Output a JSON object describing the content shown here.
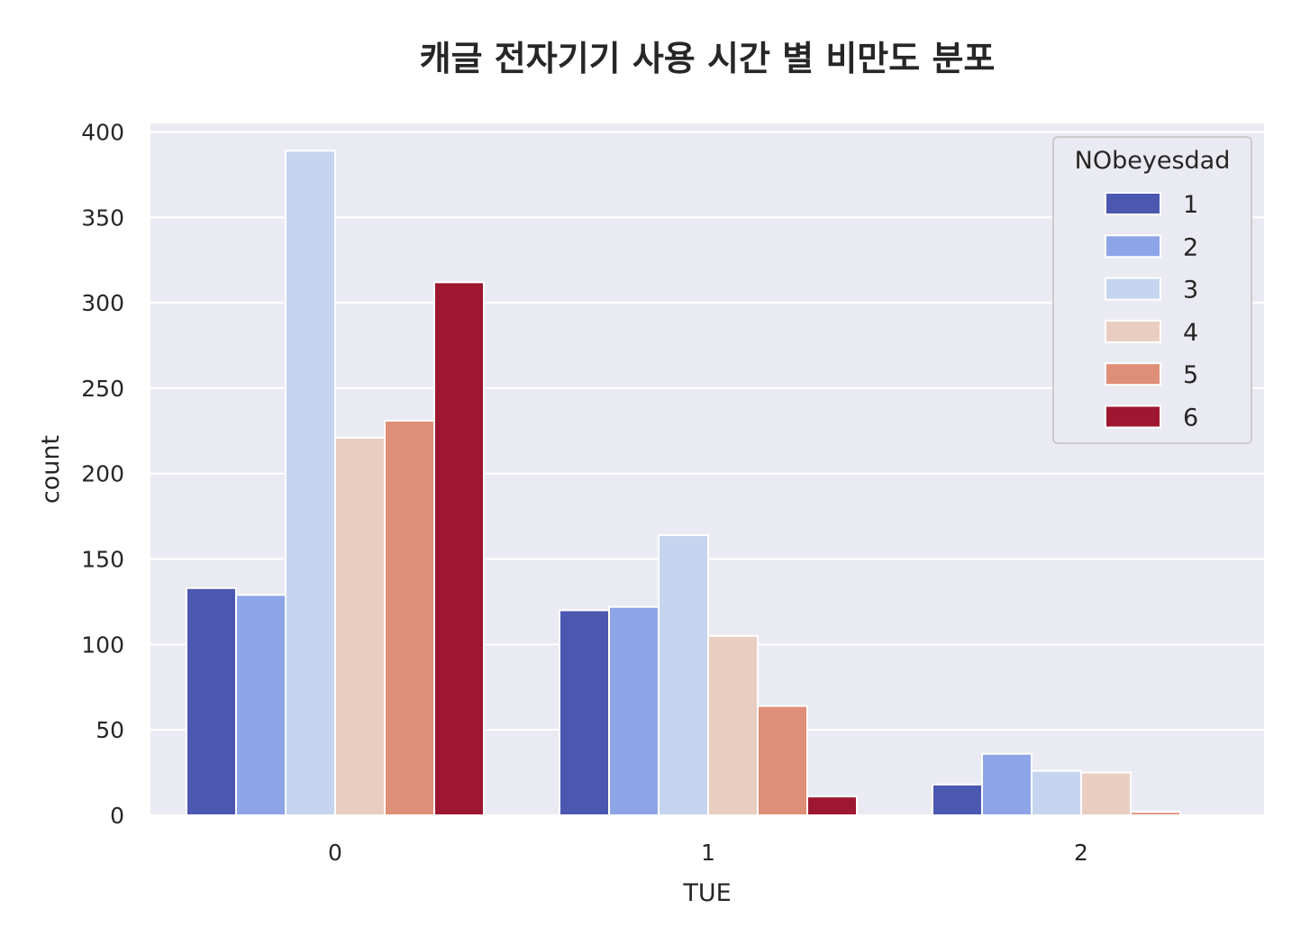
{
  "chart_data": {
    "type": "bar",
    "title": "캐글 전자기기 사용 시간 별 비만도 분포",
    "xlabel": "TUE",
    "ylabel": "count",
    "categories": [
      "0",
      "1",
      "2"
    ],
    "ylim": [
      0,
      405
    ],
    "yticks": [
      0,
      50,
      100,
      150,
      200,
      250,
      300,
      350,
      400
    ],
    "grid": true,
    "legend": {
      "title": "NObeyesdad",
      "placement": "top-right"
    },
    "series": [
      {
        "name": "1",
        "color": "#4c57b0",
        "values": [
          133,
          120,
          18
        ]
      },
      {
        "name": "2",
        "color": "#8da5e7",
        "values": [
          129,
          122,
          36
        ]
      },
      {
        "name": "3",
        "color": "#c5d5ef",
        "values": [
          389,
          164,
          26
        ]
      },
      {
        "name": "4",
        "color": "#e9cdc1",
        "values": [
          221,
          105,
          25
        ]
      },
      {
        "name": "5",
        "color": "#df8e78",
        "values": [
          231,
          64,
          2
        ]
      },
      {
        "name": "6",
        "color": "#9e1731",
        "values": [
          312,
          11,
          0
        ]
      }
    ]
  }
}
